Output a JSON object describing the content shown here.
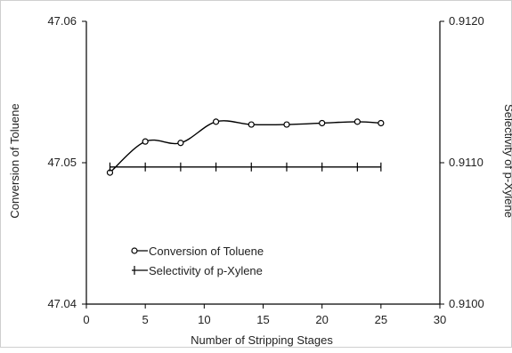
{
  "chart_data": {
    "type": "line",
    "title": "",
    "xlabel": "Number of Stripping Stages",
    "ylabel": "Conversion of Toluene",
    "y2label": "Selectivity of p-Xylene",
    "xlim": [
      0,
      30
    ],
    "ylim": [
      47.04,
      47.06
    ],
    "y2lim": [
      0.91,
      0.912
    ],
    "x_ticks": [
      "0",
      "5",
      "10",
      "15",
      "20",
      "25",
      "30"
    ],
    "y_ticks": [
      "47.04",
      "47.05",
      "47.06"
    ],
    "y2_ticks": [
      "0.9100",
      "0.9110",
      "0.9120"
    ],
    "grid": false,
    "legend_position": "bottom-left",
    "series": [
      {
        "name": "Conversion of Toluene",
        "axis": "left",
        "marker": "circle",
        "color": "#000000",
        "x": [
          2,
          5,
          8,
          11,
          14,
          17,
          20,
          23,
          25
        ],
        "y": [
          47.0493,
          47.0515,
          47.0514,
          47.0529,
          47.0527,
          47.0527,
          47.0528,
          47.0529,
          47.0528
        ]
      },
      {
        "name": "Selectivity of p-Xylene",
        "axis": "right",
        "marker": "plus",
        "color": "#000000",
        "x": [
          2,
          5,
          8,
          11,
          14,
          17,
          20,
          23,
          25
        ],
        "y": [
          0.91097,
          0.91097,
          0.91097,
          0.91097,
          0.91097,
          0.91097,
          0.91097,
          0.91097,
          0.91097
        ]
      }
    ]
  }
}
